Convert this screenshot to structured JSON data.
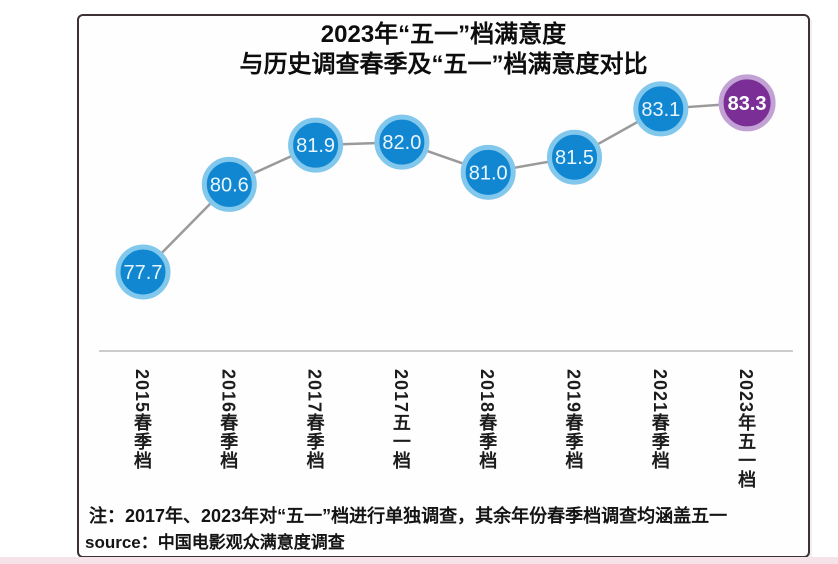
{
  "title": {
    "line1": "2023年“五一”档满意度",
    "line2": "与历史调查春季及“五一”档满意度对比"
  },
  "chart_data": {
    "type": "line",
    "title": "2023年“五一”档满意度 与历史调查春季及“五一”档满意度对比",
    "categories": [
      "2015春季档",
      "2016春季档",
      "2017春季档",
      "2017五一档",
      "2018春季档",
      "2019春季档",
      "2021春季档",
      "2023年五一档"
    ],
    "values": [
      77.7,
      80.6,
      81.9,
      82.0,
      81.0,
      81.5,
      83.1,
      83.3
    ],
    "highlight_index": 7,
    "xlabel": "",
    "ylabel": "",
    "ylim": [
      77,
      84
    ],
    "grid": false,
    "legend_position": "none",
    "marker": "filled-circle-with-value-label"
  },
  "footer": {
    "note": "注：2017年、2023年对“五一”档进行单独调查，其余年份春季档调查均涵盖五一",
    "source": "source：中国电影观众满意度调查"
  },
  "colors": {
    "point_fill": "#1187d2",
    "point_rim": "#82c7ec",
    "point_text": "#e9f6fd",
    "highlight_fill": "#7b2e95",
    "highlight_rim": "#c2a1d4",
    "highlight_text": "#ffffff",
    "connector": "#9a9a9a",
    "card_border": "#3b3136",
    "axis_line": "#cccccc",
    "bottom_strip": "#f6e3ea"
  }
}
